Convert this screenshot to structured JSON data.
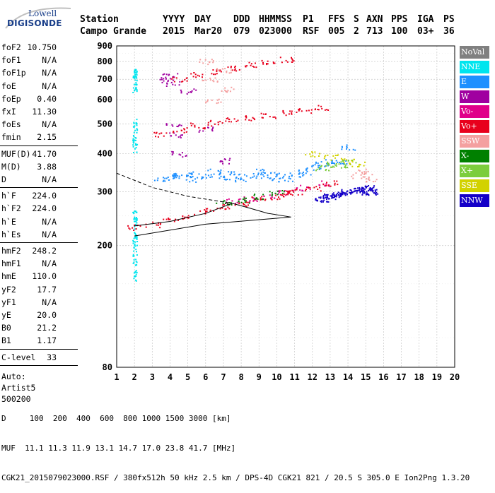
{
  "header": {
    "row1": [
      "Station",
      "YYYY",
      "DAY",
      "DDD",
      "HHMMSS",
      "P1",
      "FFS",
      "S",
      "AXN",
      "PPS",
      "IGA",
      "PS"
    ],
    "row2": [
      "Campo Grande",
      "2015",
      "Mar20",
      "079",
      "023000",
      "RSF",
      "005",
      "2",
      "713",
      "100",
      "03+",
      "36"
    ]
  },
  "logo": {
    "line1": "Lowell",
    "line2": "DIGISONDE"
  },
  "params": {
    "group1": [
      {
        "label": "foF2",
        "value": "10.750"
      },
      {
        "label": "foF1",
        "value": "N/A"
      },
      {
        "label": "foF1p",
        "value": "N/A"
      },
      {
        "label": "foE",
        "value": "N/A"
      },
      {
        "label": "foEp",
        "value": "0.40"
      },
      {
        "label": "fxI",
        "value": "11.30"
      },
      {
        "label": "foEs",
        "value": "N/A"
      },
      {
        "label": "fmin",
        "value": "2.15"
      }
    ],
    "group2": [
      {
        "label": "MUF(D)",
        "value": "41.70"
      },
      {
        "label": "M(D)",
        "value": "3.88"
      },
      {
        "label": "D",
        "value": "N/A"
      }
    ],
    "group3": [
      {
        "label": "h`F",
        "value": "224.0"
      },
      {
        "label": "h`F2",
        "value": "224.0"
      },
      {
        "label": "h`E",
        "value": "N/A"
      },
      {
        "label": "h`Es",
        "value": "N/A"
      }
    ],
    "group4": [
      {
        "label": "hmF2",
        "value": "248.2"
      },
      {
        "label": "hmF1",
        "value": "N/A"
      },
      {
        "label": "hmE",
        "value": "110.0"
      },
      {
        "label": "yF2",
        "value": "17.7"
      },
      {
        "label": "yF1",
        "value": "N/A"
      },
      {
        "label": "yE",
        "value": "20.0"
      },
      {
        "label": "B0",
        "value": "21.2"
      },
      {
        "label": "B1",
        "value": "1.17"
      }
    ],
    "clevel": {
      "label": "C-level",
      "value": "33"
    },
    "auto": [
      "Auto:",
      "Artist5",
      "500200"
    ]
  },
  "legend": [
    {
      "label": "NoVal",
      "color": "#808080"
    },
    {
      "label": "NNE",
      "color": "#00e5ee"
    },
    {
      "label": "E",
      "color": "#1e90ff"
    },
    {
      "label": "W",
      "color": "#a000a0"
    },
    {
      "label": "Vo-",
      "color": "#e0008a"
    },
    {
      "label": "Vo+",
      "color": "#e8001c"
    },
    {
      "label": "SSW",
      "color": "#f4a0a0"
    },
    {
      "label": "X-",
      "color": "#008000"
    },
    {
      "label": "X+",
      "color": "#7ccd3c"
    },
    {
      "label": "SSE",
      "color": "#d2d200"
    },
    {
      "label": "NNW",
      "color": "#1400c8"
    }
  ],
  "footer": {
    "line1": "D     100  200  400  600  800 1000 1500 3000 [km]",
    "line2": "MUF  11.1 11.3 11.9 13.1 14.7 17.0 23.8 41.7 [MHz]",
    "line3": "CGK21_2015079023000.RSF / 380fx512h 50 kHz 2.5 km / DPS-4D CGK21 821 / 20.5 S 305.0 E Ion2Png 1.3.20"
  },
  "chart_data": {
    "type": "scatter",
    "title": "",
    "xlabel": "",
    "ylabel": "",
    "xlim": [
      1,
      20
    ],
    "ylim": [
      80,
      900
    ],
    "yscale": "log",
    "grid": true,
    "x_ticks": [
      "1",
      "2",
      "3",
      "4",
      "5",
      "6",
      "7",
      "8",
      "9",
      "10",
      "11",
      "12",
      "13",
      "14",
      "15",
      "16",
      "17",
      "18",
      "19",
      "20"
    ],
    "y_ticks": [
      "80",
      "200",
      "300",
      "400",
      "500",
      "600",
      "700",
      "800",
      "900"
    ],
    "series": [
      {
        "name": "NNE",
        "color": "#00e5ee",
        "x": [
          2.0,
          2.0,
          2.0,
          2.0,
          2.0,
          2.0,
          2.0,
          2.0,
          2.0,
          2.0,
          2.0,
          2.0
        ],
        "y": [
          660,
          700,
          740,
          420,
          460,
          500,
          160,
          180,
          200,
          220,
          240,
          250
        ]
      },
      {
        "name": "E",
        "color": "#1e90ff",
        "x": [
          3.5,
          4.0,
          4.5,
          5.0,
          5.5,
          6.0,
          6.5,
          7.0,
          7.5,
          8.0,
          8.5,
          9.0,
          9.5,
          10.0,
          10.5,
          11.0,
          11.5,
          12.0,
          12.5,
          13.0,
          13.5,
          14.0
        ],
        "y": [
          330,
          340,
          335,
          345,
          330,
          340,
          350,
          335,
          345,
          330,
          340,
          350,
          335,
          345,
          330,
          340,
          350,
          360,
          370,
          380,
          375,
          420
        ]
      },
      {
        "name": "W",
        "color": "#a000a0",
        "x": [
          3.8,
          4.0,
          4.1,
          4.2,
          4.3,
          4.5,
          5.0,
          6.0,
          7.0
        ],
        "y": [
          700,
          720,
          680,
          500,
          460,
          400,
          640,
          480,
          380
        ]
      },
      {
        "name": "Vo-",
        "color": "#e0008a",
        "x": [
          7.5,
          8.5,
          9.5,
          10.5,
          11.5,
          12.5
        ],
        "y": [
          280,
          285,
          290,
          300,
          310,
          320
        ]
      },
      {
        "name": "Vo+",
        "color": "#e8001c",
        "x": [
          2.0,
          3.0,
          4.0,
          5.0,
          6.0,
          7.0,
          8.0,
          9.0,
          10.0,
          10.5,
          11.0,
          12.0,
          13.0,
          3.5,
          4.5,
          5.5,
          6.5,
          7.5,
          8.5,
          9.5,
          10.5,
          11.5,
          12.5,
          4.5,
          5.5,
          6.5,
          7.5,
          8.5,
          9.5,
          10.5
        ],
        "y": [
          230,
          235,
          245,
          250,
          260,
          270,
          275,
          285,
          290,
          300,
          300,
          310,
          320,
          465,
          480,
          495,
          505,
          515,
          525,
          535,
          545,
          555,
          565,
          705,
          725,
          745,
          765,
          785,
          800,
          815
        ]
      },
      {
        "name": "SSW",
        "color": "#f4a0a0",
        "x": [
          6.0,
          6.2,
          6.4,
          7.0,
          7.2,
          14.6,
          15.0,
          15.2
        ],
        "y": [
          800,
          700,
          600,
          750,
          650,
          340,
          350,
          330
        ]
      },
      {
        "name": "X-",
        "color": "#008000",
        "x": [
          7.0,
          8.0,
          9.0,
          10.0
        ],
        "y": [
          278,
          282,
          290,
          298
        ]
      },
      {
        "name": "X+",
        "color": "#7ccd3c",
        "x": [
          12.5,
          13.0,
          13.5,
          14.0
        ],
        "y": [
          360,
          370,
          365,
          375
        ]
      },
      {
        "name": "SSE",
        "color": "#d2d200",
        "x": [
          12.0,
          13.0,
          14.0,
          14.5
        ],
        "y": [
          400,
          390,
          380,
          370
        ]
      },
      {
        "name": "NNW",
        "color": "#1400c8",
        "x": [
          12.5,
          13.0,
          13.5,
          14.0,
          14.5,
          15.0,
          15.2
        ],
        "y": [
          285,
          290,
          295,
          300,
          305,
          310,
          300
        ]
      }
    ],
    "profile_black": {
      "x": [
        2.0,
        4.0,
        6.0,
        7.5,
        8.5,
        9.5,
        10.8,
        6.0,
        2.0
      ],
      "y": [
        232,
        240,
        255,
        275,
        265,
        255,
        248,
        235,
        215
      ]
    },
    "profile_dashed": {
      "x": [
        1.0,
        3.0,
        5.0,
        7.5
      ],
      "y": [
        345,
        310,
        290,
        275
      ]
    }
  }
}
